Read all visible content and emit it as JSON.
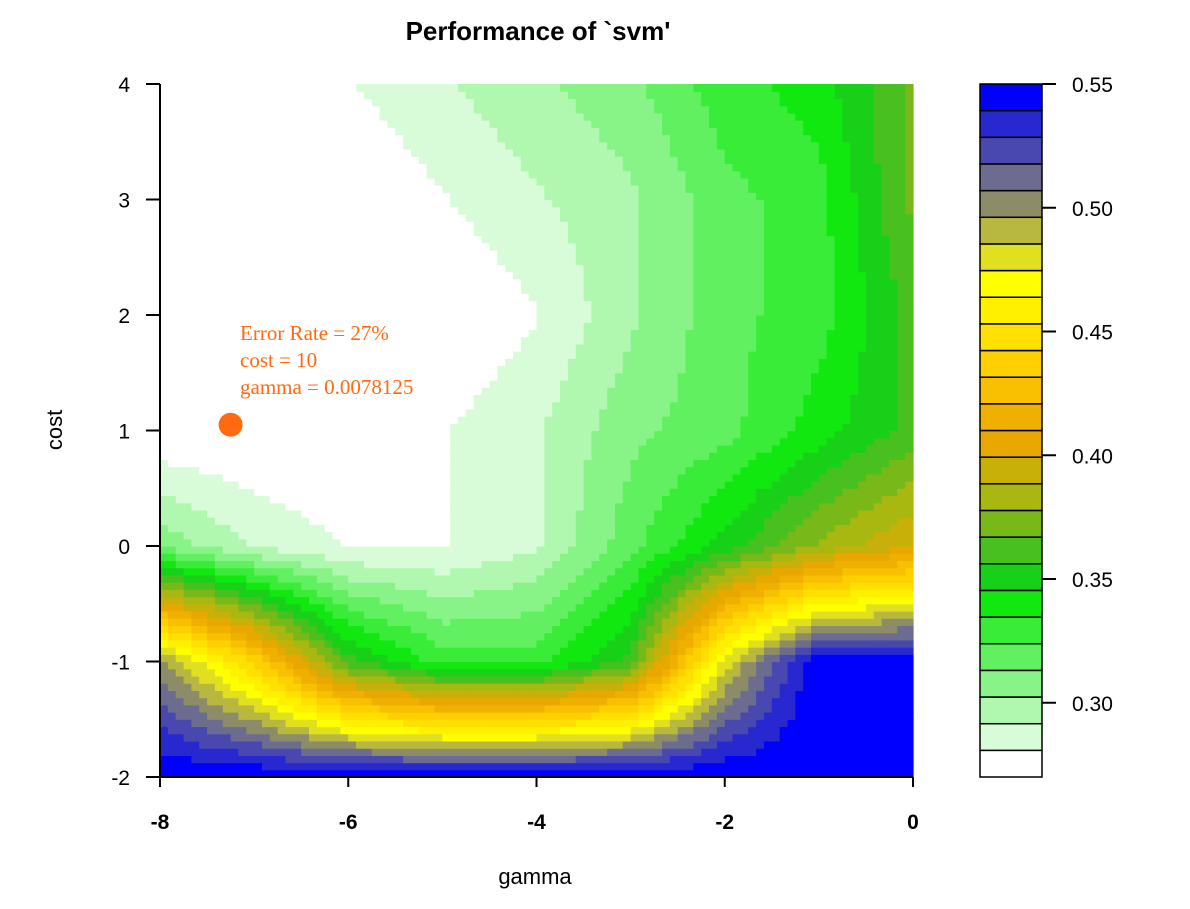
{
  "chart_data": {
    "type": "heatmap",
    "title": "Performance of `svm'",
    "xlabel": "gamma",
    "ylabel": "cost",
    "xlim": [
      -8,
      0
    ],
    "ylim": [
      -2,
      4
    ],
    "x_ticks": [
      "-8",
      "-6",
      "-4",
      "-2",
      "0"
    ],
    "y_ticks": [
      "-2",
      "-1",
      "0",
      "1",
      "2",
      "3",
      "4"
    ],
    "x_tick_values": [
      -8,
      -6,
      -4,
      -2,
      0
    ],
    "y_tick_values": [
      -2,
      -1,
      0,
      1,
      2,
      3,
      4
    ],
    "grid": false,
    "x": [
      -8,
      -7,
      -6,
      -5,
      -4,
      -3,
      -2,
      -1,
      0
    ],
    "y": [
      -2,
      -1,
      0,
      1,
      2,
      3,
      4
    ],
    "z": [
      [
        0.55,
        0.55,
        0.55,
        0.55,
        0.55,
        0.55,
        0.55,
        0.55,
        0.55
      ],
      [
        0.5,
        0.44,
        0.36,
        0.33,
        0.33,
        0.36,
        0.48,
        0.55,
        0.55
      ],
      [
        0.31,
        0.29,
        0.28,
        0.28,
        0.29,
        0.32,
        0.35,
        0.38,
        0.4
      ],
      [
        0.27,
        0.27,
        0.27,
        0.28,
        0.29,
        0.31,
        0.32,
        0.34,
        0.36
      ],
      [
        0.27,
        0.27,
        0.27,
        0.27,
        0.28,
        0.3,
        0.32,
        0.33,
        0.36
      ],
      [
        0.27,
        0.27,
        0.27,
        0.28,
        0.29,
        0.3,
        0.32,
        0.33,
        0.37
      ],
      [
        0.27,
        0.28,
        0.28,
        0.29,
        0.3,
        0.31,
        0.33,
        0.34,
        0.37
      ]
    ],
    "levels": [
      0.27,
      0.28,
      0.29,
      0.3,
      0.31,
      0.32,
      0.33,
      0.34,
      0.35,
      0.36,
      0.37,
      0.38,
      0.39,
      0.4,
      0.41,
      0.42,
      0.43,
      0.44,
      0.45,
      0.46,
      0.47,
      0.48,
      0.49,
      0.5,
      0.51,
      0.52,
      0.53,
      0.54,
      0.55
    ],
    "colorbar_ticks": [
      "0.30",
      "0.35",
      "0.40",
      "0.45",
      "0.50",
      "0.55"
    ],
    "colorbar_tick_values": [
      0.3,
      0.35,
      0.4,
      0.45,
      0.5,
      0.55
    ],
    "colorbar_colors": [
      "#ffffff",
      "#d8fcd8",
      "#b0f8b0",
      "#88f488",
      "#60f060",
      "#38ec38",
      "#10e810",
      "#18d018",
      "#48c020",
      "#78b818",
      "#a8b810",
      "#c8b008",
      "#e8a800",
      "#f0b000",
      "#f8c000",
      "#ffd000",
      "#ffe000",
      "#fff000",
      "#ffff00",
      "#e0e020",
      "#b8b840",
      "#8c8c68",
      "#6c6c90",
      "#4848b0",
      "#2828d0",
      "#0000ff"
    ],
    "annotation": {
      "lines": [
        "Error Rate = 27%",
        "cost = 10",
        "gamma = 0.0078125"
      ],
      "point": [
        -7.25,
        1.05
      ],
      "color": "#ff6a10"
    }
  }
}
